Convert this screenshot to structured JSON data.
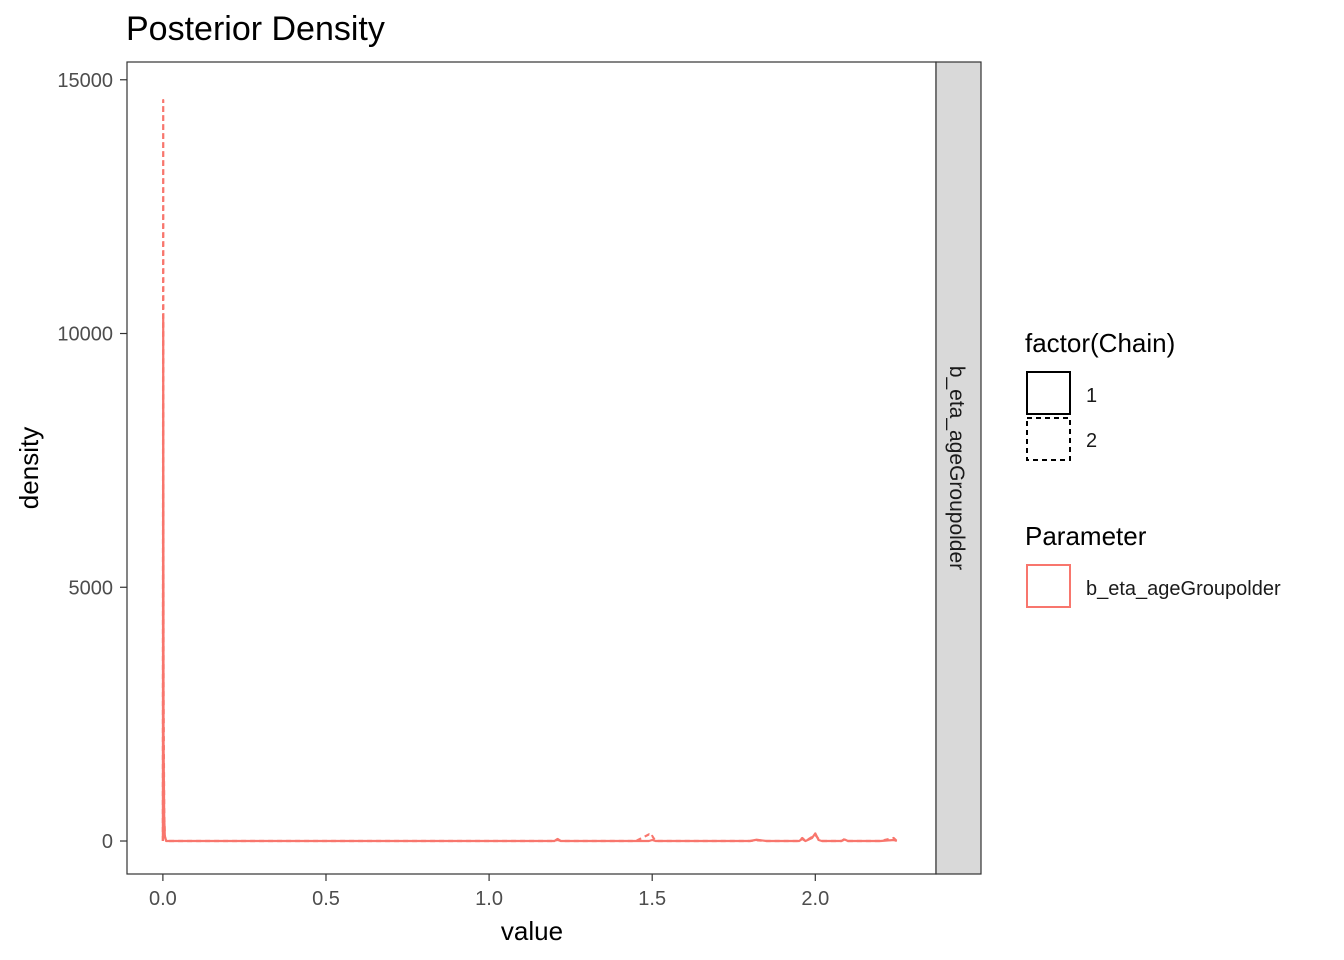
{
  "chart_data": {
    "type": "line",
    "title": "Posterior Density",
    "xlabel": "value",
    "ylabel": "density",
    "xlim": [
      -0.11,
      2.37
    ],
    "ylim": [
      -650,
      15350
    ],
    "x_ticks": [
      {
        "value": 0.0,
        "label": "0.0"
      },
      {
        "value": 0.5,
        "label": "0.5"
      },
      {
        "value": 1.0,
        "label": "1.0"
      },
      {
        "value": 1.5,
        "label": "1.5"
      },
      {
        "value": 2.0,
        "label": "2.0"
      }
    ],
    "y_ticks": [
      {
        "value": 0,
        "label": "0"
      },
      {
        "value": 5000,
        "label": "5000"
      },
      {
        "value": 10000,
        "label": "10000"
      },
      {
        "value": 15000,
        "label": "15000"
      }
    ],
    "facet_strip": "b_eta_ageGroupolder",
    "grid": false,
    "legend_position": "right",
    "color": "#F8766D",
    "series": [
      {
        "chain": "1",
        "linetype": "solid",
        "parameter": "b_eta_ageGroupolder",
        "x": [
          0.0,
          0.001,
          0.002,
          0.004,
          0.006,
          0.01,
          0.1,
          0.5,
          1.0,
          1.2,
          1.21,
          1.22,
          1.3,
          1.45,
          1.49,
          1.5,
          1.51,
          1.6,
          1.8,
          1.82,
          1.85,
          1.95,
          1.96,
          1.97,
          1.99,
          2.0,
          2.01,
          2.02,
          2.05,
          2.08,
          2.09,
          2.1,
          2.2,
          2.24,
          2.25
        ],
        "y": [
          0,
          10300,
          2000,
          500,
          80,
          0,
          0,
          0,
          0,
          0,
          40,
          0,
          0,
          0,
          0,
          20,
          0,
          0,
          0,
          25,
          0,
          0,
          40,
          0,
          60,
          150,
          20,
          0,
          0,
          0,
          30,
          0,
          0,
          20,
          0
        ]
      },
      {
        "chain": "2",
        "linetype": "dashed",
        "parameter": "b_eta_ageGroupolder",
        "x": [
          0.0,
          0.001,
          0.002,
          0.004,
          0.006,
          0.01,
          0.1,
          0.5,
          1.0,
          1.2,
          1.21,
          1.22,
          1.3,
          1.45,
          1.49,
          1.495,
          1.5,
          1.51,
          1.6,
          1.8,
          1.82,
          1.85,
          1.95,
          1.96,
          1.97,
          1.99,
          2.0,
          2.01,
          2.02,
          2.05,
          2.08,
          2.09,
          2.1,
          2.2,
          2.24,
          2.25
        ],
        "y": [
          0,
          14600,
          3000,
          600,
          100,
          0,
          0,
          0,
          0,
          0,
          20,
          0,
          0,
          0,
          130,
          80,
          100,
          0,
          0,
          0,
          15,
          0,
          0,
          60,
          0,
          80,
          120,
          40,
          0,
          0,
          0,
          40,
          0,
          0,
          60,
          0
        ]
      }
    ]
  },
  "legend": {
    "chain": {
      "title": "factor(Chain)",
      "items": [
        {
          "label": "1",
          "linetype": "solid"
        },
        {
          "label": "2",
          "linetype": "dashed"
        }
      ]
    },
    "parameter": {
      "title": "Parameter",
      "items": [
        {
          "label": "b_eta_ageGroupolder",
          "color": "#F8766D"
        }
      ]
    }
  }
}
